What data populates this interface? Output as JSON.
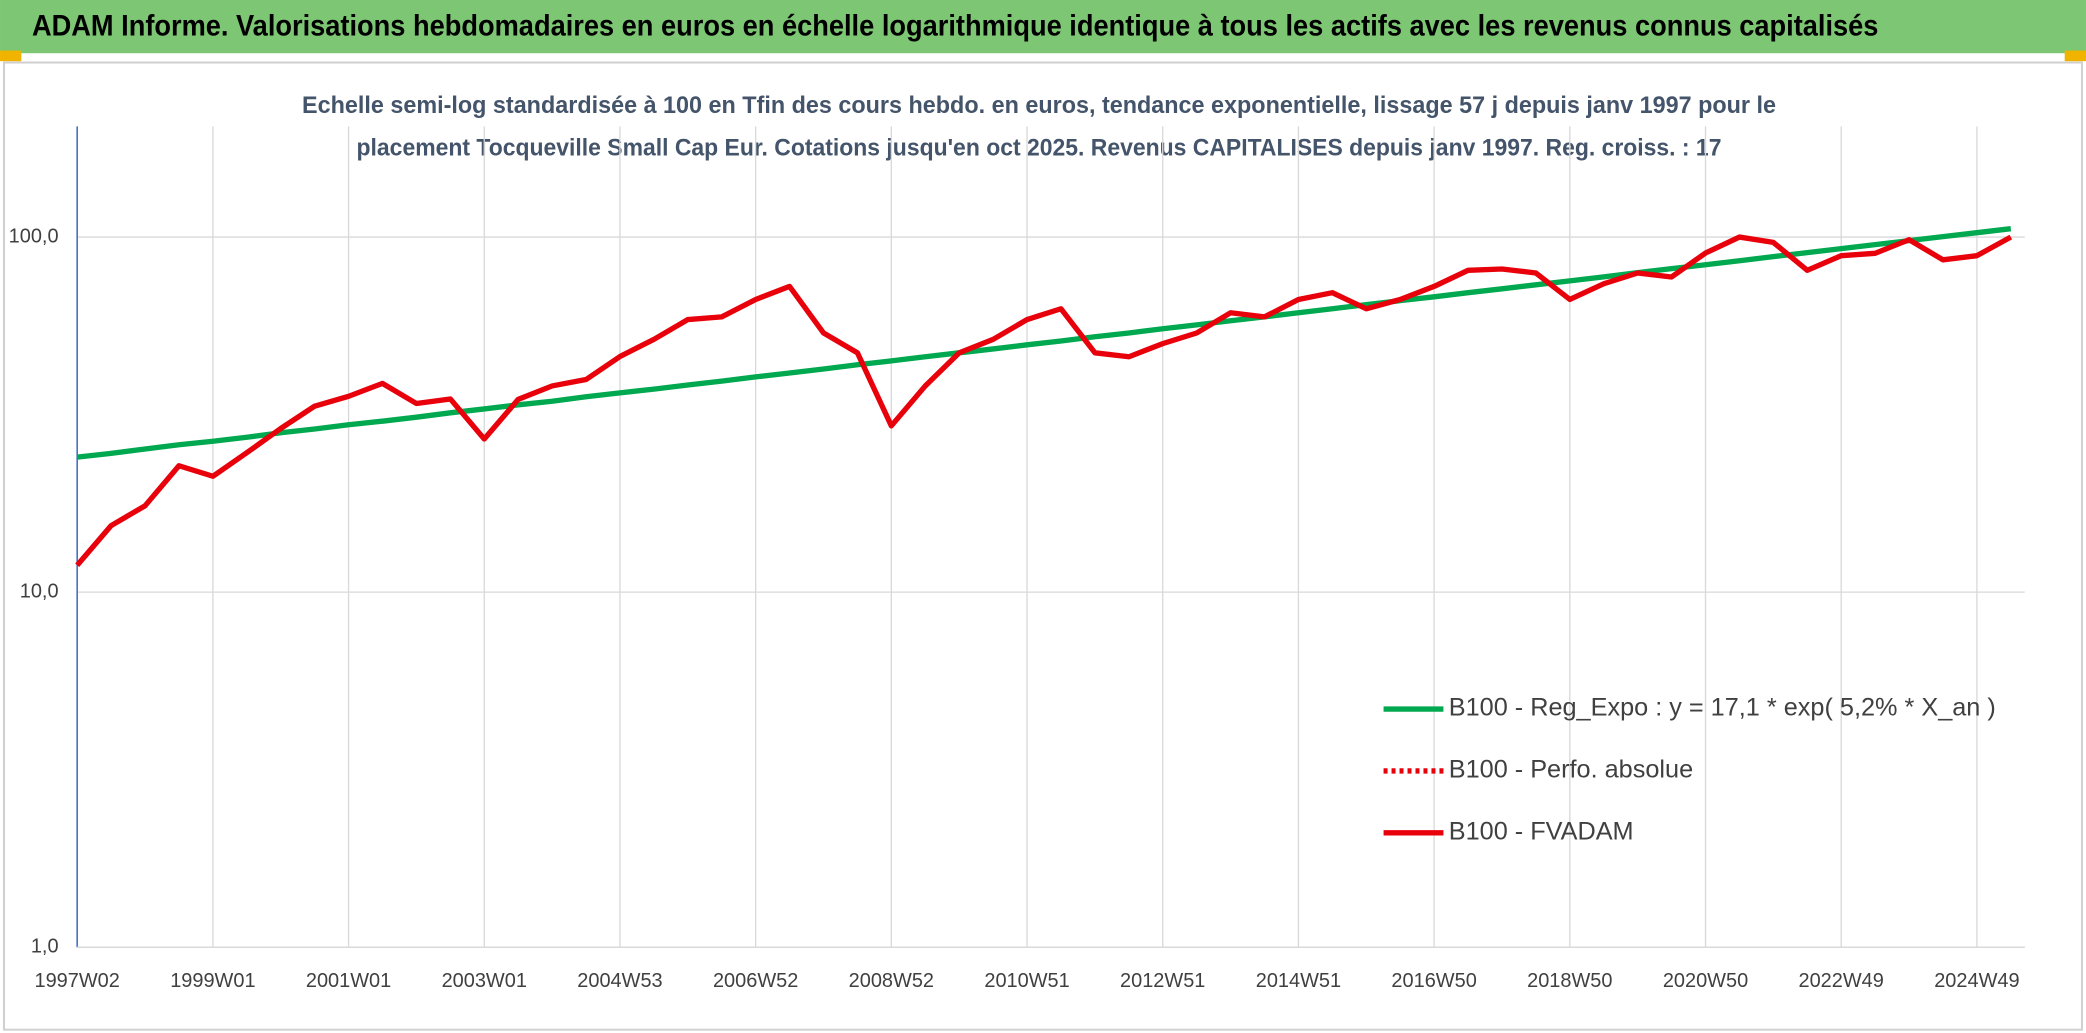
{
  "chart_data": {
    "type": "line",
    "title": "ADAM Informe. Valorisations hebdomadaires en euros en échelle logarithmique identique à tous les actifs avec les revenus connus capitalisés",
    "subtitle": [
      "Echelle semi-log standardisée à 100 en Tfin des cours hebdo. en euros, tendance exponentielle, lissage 57 j depuis janv 1997 pour le",
      "placement Tocqueville Small Cap Eur. Cotations jusqu'en oct 2025. Revenus CAPITALISES depuis janv 1997. Reg. croiss. : 17"
    ],
    "categories": [
      "1997W02",
      null,
      null,
      null,
      "1999W01",
      null,
      null,
      null,
      "2001W01",
      null,
      null,
      null,
      "2003W01",
      null,
      null,
      null,
      "2004W53",
      null,
      null,
      null,
      "2006W52",
      null,
      null,
      null,
      "2008W52",
      null,
      null,
      null,
      "2010W51",
      null,
      null,
      null,
      "2012W51",
      null,
      null,
      null,
      "2014W51",
      null,
      null,
      null,
      "2016W50",
      null,
      null,
      null,
      "2018W50",
      null,
      null,
      null,
      "2020W50",
      null,
      null,
      null,
      "2022W49",
      null,
      null,
      null,
      "2024W49",
      null
    ],
    "series": [
      {
        "name": "B100 - Reg_Expo : y = 17,1 * exp( 5,2% *  X_an )",
        "color": "#00a84f",
        "style": "solid",
        "values": [
          24.0,
          24.6,
          25.3,
          26.0,
          26.6,
          27.3,
          28.1,
          28.8,
          29.6,
          30.3,
          31.1,
          32.0,
          32.8,
          33.7,
          34.5,
          35.5,
          36.4,
          37.3,
          38.3,
          39.3,
          40.4,
          41.4,
          42.5,
          43.7,
          44.8,
          46.0,
          47.2,
          48.4,
          49.7,
          51.0,
          52.4,
          53.7,
          55.2,
          56.6,
          58.1,
          59.6,
          61.2,
          62.8,
          64.5,
          66.2,
          67.9,
          69.7,
          71.5,
          73.4,
          75.3,
          77.3,
          79.4,
          81.5,
          83.6,
          85.8,
          88.1,
          90.4,
          92.8,
          95.2,
          97.7,
          100.3,
          102.9,
          105.6
        ]
      },
      {
        "name": "B100 - Perfo. absolue",
        "color": "#e8000b",
        "style": "dotted",
        "values": [
          null,
          null,
          null,
          null,
          null,
          null,
          null,
          null,
          null,
          null,
          null,
          null,
          null,
          null,
          null,
          null,
          null,
          null,
          null,
          null,
          null,
          null,
          null,
          null,
          null,
          null,
          null,
          null,
          null,
          null,
          null,
          null,
          null,
          null,
          null,
          null,
          null,
          null,
          null,
          null,
          null,
          null,
          null,
          null,
          null,
          null,
          null,
          null,
          null,
          null,
          null,
          null,
          null,
          null,
          null,
          null,
          null,
          null
        ]
      },
      {
        "name": "B100 - FVADAM",
        "color": "#e8000b",
        "style": "solid",
        "values": [
          11.9,
          15.4,
          17.5,
          22.7,
          21.2,
          24.7,
          28.9,
          33.4,
          35.6,
          38.7,
          34.0,
          35.0,
          27.0,
          34.9,
          38.1,
          39.7,
          46.1,
          51.5,
          58.6,
          59.6,
          66.7,
          72.6,
          53.7,
          47.2,
          29.4,
          38.1,
          47.2,
          51.5,
          58.6,
          62.8,
          47.2,
          46.0,
          50.1,
          53.7,
          61.2,
          59.6,
          66.7,
          69.7,
          62.8,
          66.7,
          72.6,
          80.6,
          81.3,
          79.2,
          66.7,
          73.9,
          79.2,
          77.2,
          90.2,
          100,
          96.6,
          80.6,
          88.6,
          90,
          98.3,
          86.3,
          88.6,
          100
        ]
      }
    ],
    "log_scale": true,
    "ylim": [
      1,
      205
    ],
    "yticks": [
      {
        "value": 1,
        "label": "1,0"
      },
      {
        "value": 10,
        "label": "10,0"
      },
      {
        "value": 100,
        "label": "100,0"
      }
    ],
    "grid": true,
    "legend_position": "right"
  }
}
